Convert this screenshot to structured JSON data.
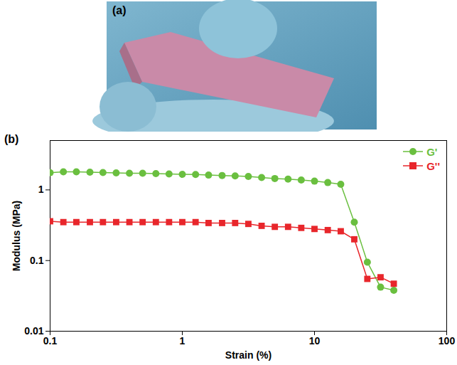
{
  "photo": {
    "label": "(a)"
  },
  "chart_data": {
    "type": "line",
    "annotations": [
      "(b)"
    ],
    "x_label": "Strain (%)",
    "y_label": "Modulus (MPa)",
    "log": true,
    "grid": false,
    "legend": "upper right",
    "xlim": [
      0.1,
      100
    ],
    "xticks": [
      0.1,
      1,
      10,
      100
    ],
    "ylim": [
      0.01,
      5
    ],
    "yticks": [
      0.01,
      0.1,
      1
    ],
    "x": [
      0.1,
      0.126,
      0.158,
      0.2,
      0.251,
      0.316,
      0.398,
      0.501,
      0.631,
      0.794,
      1,
      1.26,
      1.58,
      2,
      2.51,
      3.16,
      3.98,
      5.01,
      6.31,
      7.94,
      10,
      12.6,
      15.8,
      20,
      25.1,
      31.6,
      39.8
    ],
    "series": [
      {
        "name": "G'",
        "color": "#6abf3f",
        "marker": "circle",
        "values": [
          1.75,
          1.8,
          1.8,
          1.78,
          1.76,
          1.74,
          1.72,
          1.72,
          1.7,
          1.68,
          1.66,
          1.65,
          1.62,
          1.6,
          1.58,
          1.55,
          1.5,
          1.45,
          1.42,
          1.38,
          1.33,
          1.27,
          1.2,
          0.35,
          0.095,
          0.042,
          0.038
        ]
      },
      {
        "name": "G''",
        "color": "#e8262b",
        "marker": "square",
        "values": [
          0.36,
          0.35,
          0.35,
          0.35,
          0.35,
          0.35,
          0.35,
          0.35,
          0.35,
          0.35,
          0.35,
          0.35,
          0.34,
          0.34,
          0.34,
          0.33,
          0.31,
          0.3,
          0.3,
          0.29,
          0.28,
          0.27,
          0.26,
          0.2,
          0.055,
          0.058,
          0.047
        ]
      }
    ]
  }
}
